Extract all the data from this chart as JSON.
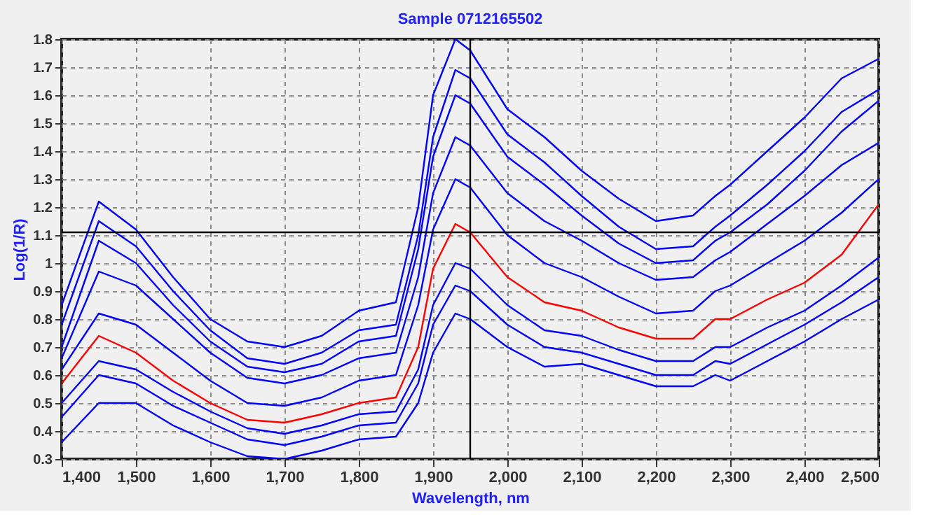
{
  "chart_data": {
    "type": "line",
    "title": "Sample 0712165502",
    "xlabel": "Wavelength, nm",
    "ylabel": "Log(1/R)",
    "x": [
      1400,
      1450,
      1500,
      1550,
      1600,
      1650,
      1700,
      1750,
      1800,
      1850,
      1880,
      1900,
      1930,
      1950,
      2000,
      2050,
      2100,
      2150,
      2200,
      2250,
      2280,
      2300,
      2350,
      2400,
      2450,
      2500
    ],
    "series": [
      {
        "color": "#0000ff",
        "values": [
          0.85,
          1.22,
          1.12,
          0.95,
          0.8,
          0.72,
          0.7,
          0.74,
          0.83,
          0.86,
          1.2,
          1.6,
          1.8,
          1.76,
          1.55,
          1.45,
          1.33,
          1.23,
          1.15,
          1.17,
          1.24,
          1.28,
          1.4,
          1.52,
          1.66,
          1.73
        ]
      },
      {
        "color": "#0000ff",
        "values": [
          0.78,
          1.15,
          1.06,
          0.9,
          0.76,
          0.66,
          0.64,
          0.68,
          0.76,
          0.78,
          1.1,
          1.45,
          1.69,
          1.66,
          1.46,
          1.36,
          1.24,
          1.13,
          1.05,
          1.06,
          1.13,
          1.17,
          1.28,
          1.4,
          1.54,
          1.62
        ]
      },
      {
        "color": "#0000ff",
        "values": [
          0.7,
          1.08,
          1.0,
          0.85,
          0.72,
          0.63,
          0.61,
          0.64,
          0.72,
          0.74,
          1.05,
          1.38,
          1.6,
          1.57,
          1.38,
          1.28,
          1.17,
          1.07,
          1.0,
          1.01,
          1.08,
          1.11,
          1.21,
          1.33,
          1.47,
          1.58
        ]
      },
      {
        "color": "#0000ff",
        "values": [
          0.66,
          0.97,
          0.92,
          0.8,
          0.68,
          0.59,
          0.57,
          0.6,
          0.66,
          0.68,
          0.95,
          1.25,
          1.45,
          1.42,
          1.25,
          1.15,
          1.08,
          1.0,
          0.94,
          0.95,
          1.01,
          1.04,
          1.14,
          1.24,
          1.35,
          1.43
        ]
      },
      {
        "color": "#0000ff",
        "values": [
          0.62,
          0.82,
          0.78,
          0.68,
          0.58,
          0.5,
          0.49,
          0.52,
          0.58,
          0.6,
          0.85,
          1.12,
          1.3,
          1.27,
          1.1,
          1.0,
          0.95,
          0.88,
          0.82,
          0.83,
          0.9,
          0.92,
          1.0,
          1.08,
          1.18,
          1.3
        ]
      },
      {
        "color": "#0000ff",
        "values": [
          0.5,
          0.65,
          0.62,
          0.54,
          0.47,
          0.41,
          0.39,
          0.42,
          0.46,
          0.47,
          0.62,
          0.85,
          1.0,
          0.98,
          0.85,
          0.76,
          0.74,
          0.69,
          0.65,
          0.65,
          0.7,
          0.7,
          0.77,
          0.83,
          0.92,
          1.02
        ]
      },
      {
        "color": "#0000ff",
        "values": [
          0.45,
          0.6,
          0.57,
          0.49,
          0.43,
          0.37,
          0.35,
          0.38,
          0.42,
          0.43,
          0.57,
          0.78,
          0.92,
          0.9,
          0.78,
          0.7,
          0.68,
          0.64,
          0.6,
          0.6,
          0.65,
          0.64,
          0.71,
          0.78,
          0.86,
          0.95
        ]
      },
      {
        "color": "#0000ff",
        "values": [
          0.36,
          0.5,
          0.5,
          0.42,
          0.36,
          0.31,
          0.3,
          0.33,
          0.37,
          0.38,
          0.5,
          0.68,
          0.82,
          0.8,
          0.7,
          0.63,
          0.64,
          0.6,
          0.56,
          0.56,
          0.6,
          0.58,
          0.65,
          0.72,
          0.8,
          0.87
        ]
      },
      {
        "color": "#ff0000",
        "values": [
          0.57,
          0.74,
          0.68,
          0.58,
          0.5,
          0.44,
          0.43,
          0.46,
          0.5,
          0.52,
          0.7,
          0.98,
          1.14,
          1.11,
          0.95,
          0.86,
          0.83,
          0.77,
          0.73,
          0.73,
          0.8,
          0.8,
          0.87,
          0.93,
          1.03,
          1.21
        ]
      }
    ],
    "xlim": [
      1400,
      2500
    ],
    "xticks": [
      {
        "value": 1400,
        "label": "1,400"
      },
      {
        "value": 1500,
        "label": "1,500"
      },
      {
        "value": 1600,
        "label": "1,600"
      },
      {
        "value": 1700,
        "label": "1,700"
      },
      {
        "value": 1800,
        "label": "1,800"
      },
      {
        "value": 1900,
        "label": "1,900"
      },
      {
        "value": 2000,
        "label": "2,000"
      },
      {
        "value": 2100,
        "label": "2,100"
      },
      {
        "value": 2200,
        "label": "2,200"
      },
      {
        "value": 2300,
        "label": "2,300"
      },
      {
        "value": 2400,
        "label": "2,400"
      },
      {
        "value": 2500,
        "label": "2,500"
      }
    ],
    "ylim": [
      0.3,
      1.8
    ],
    "yticks": [
      0.3,
      0.4,
      0.5,
      0.6,
      0.7,
      0.8,
      0.9,
      1,
      1.1,
      1.2,
      1.3,
      1.4,
      1.5,
      1.6,
      1.7,
      1.8
    ],
    "ref_lines": [
      {
        "axis": "x",
        "value": 1950,
        "color": "#000000"
      },
      {
        "axis": "y",
        "value": 1.11,
        "color": "#000000"
      }
    ],
    "grid": true,
    "legend": false,
    "line_style": "solid"
  }
}
